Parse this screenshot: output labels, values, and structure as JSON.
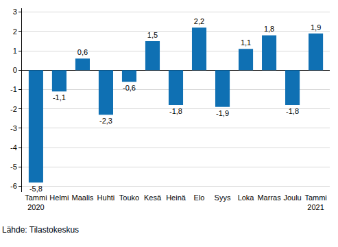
{
  "chart_data": {
    "type": "bar",
    "categories": [
      "Tammi\n2020",
      "Helmi",
      "Maalis",
      "Huhti",
      "Touko",
      "Kesä",
      "Heinä",
      "Elo",
      "Syys",
      "Loka",
      "Marras",
      "Joulu",
      "Tammi\n2021"
    ],
    "values": [
      -5.8,
      -1.1,
      0.6,
      -2.3,
      -0.6,
      1.5,
      -1.8,
      2.2,
      -1.9,
      1.1,
      1.8,
      -1.8,
      1.9
    ],
    "value_labels": [
      "-5,8",
      "-1,1",
      "0,6",
      "-2,3",
      "-0,6",
      "1,5",
      "-1,8",
      "2,2",
      "-1,9",
      "1,1",
      "1,8",
      "-1,8",
      "1,9"
    ],
    "color": "#0f70b3",
    "ylim": [
      -6.3,
      3.2
    ],
    "yticks": [
      -6,
      -5,
      -4,
      -3,
      -2,
      -1,
      0,
      1,
      2,
      3
    ],
    "grid": true,
    "data_labels": true,
    "source": "Lähde: Tilastokeskus"
  }
}
